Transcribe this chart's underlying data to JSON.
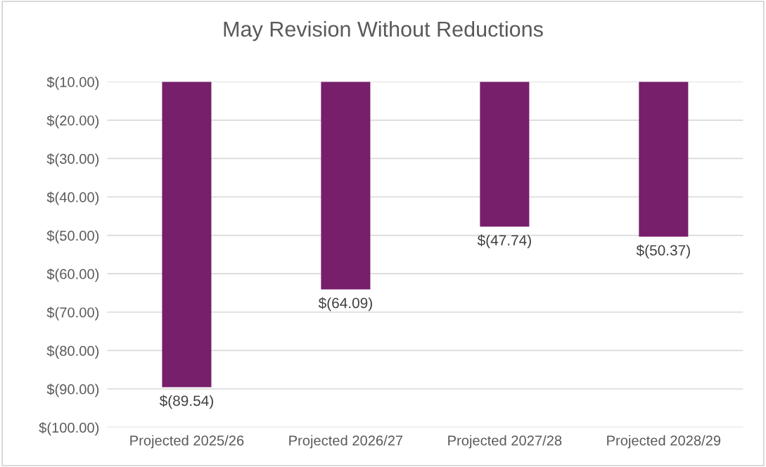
{
  "chart_data": {
    "type": "bar",
    "title": "May Revision Without Reductions",
    "categories": [
      "Projected 2025/26",
      "Projected 2026/27",
      "Projected 2027/28",
      "Projected 2028/29"
    ],
    "values": [
      -89.54,
      -64.09,
      -47.74,
      -50.37
    ],
    "value_labels": [
      "$(89.54)",
      "$(64.09)",
      "$(47.74)",
      "$(50.37)"
    ],
    "color": "#771f6b",
    "ylim": [
      -100,
      -10
    ],
    "yticks": [
      {
        "value": -10,
        "label": "$(10.00)"
      },
      {
        "value": -20,
        "label": "$(20.00)"
      },
      {
        "value": -30,
        "label": "$(30.00)"
      },
      {
        "value": -40,
        "label": "$(40.00)"
      },
      {
        "value": -50,
        "label": "$(50.00)"
      },
      {
        "value": -60,
        "label": "$(60.00)"
      },
      {
        "value": -70,
        "label": "$(70.00)"
      },
      {
        "value": -80,
        "label": "$(80.00)"
      },
      {
        "value": -90,
        "label": "$(90.00)"
      },
      {
        "value": -100,
        "label": "$(100.00)"
      }
    ],
    "grid": "y"
  }
}
